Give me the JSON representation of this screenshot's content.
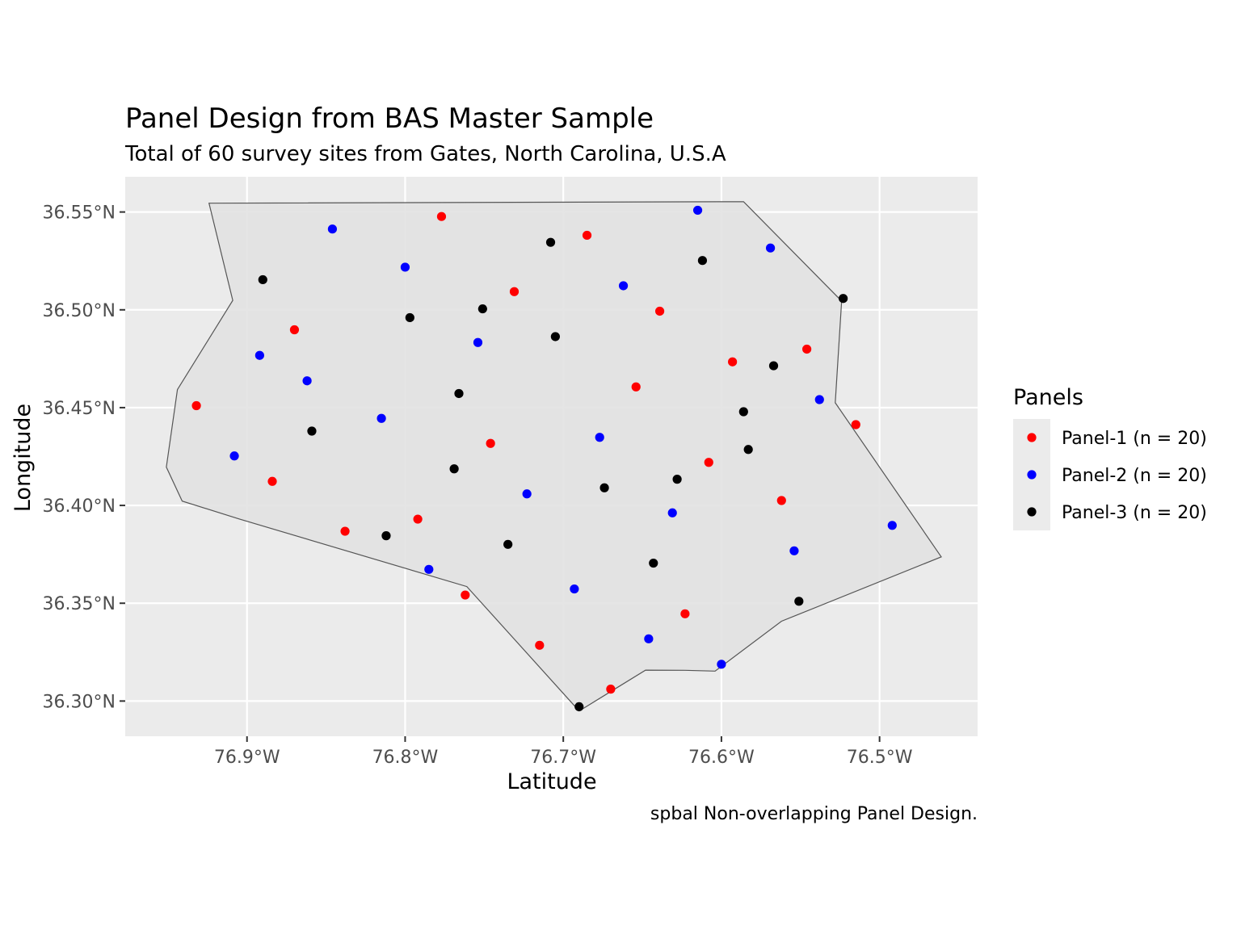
{
  "chart_data": {
    "type": "scatter",
    "title": "Panel Design from BAS Master Sample",
    "subtitle": "Total of 60 survey sites from Gates, North Carolina, U.S.A",
    "xlabel": "Latitude",
    "ylabel": "Longitude",
    "caption": "spbal Non-overlapping Panel Design.",
    "xlim": [
      -76.977,
      -76.438
    ],
    "ylim": [
      36.282,
      36.568
    ],
    "x_ticks": [
      {
        "value": -76.9,
        "label": "76.9°W"
      },
      {
        "value": -76.8,
        "label": "76.8°W"
      },
      {
        "value": -76.7,
        "label": "76.7°W"
      },
      {
        "value": -76.6,
        "label": "76.6°W"
      },
      {
        "value": -76.5,
        "label": "76.5°W"
      }
    ],
    "y_ticks": [
      {
        "value": 36.3,
        "label": "36.30°N"
      },
      {
        "value": 36.35,
        "label": "36.35°N"
      },
      {
        "value": 36.4,
        "label": "36.40°N"
      },
      {
        "value": 36.45,
        "label": "36.45°N"
      },
      {
        "value": 36.5,
        "label": "36.50°N"
      },
      {
        "value": 36.55,
        "label": "36.55°N"
      }
    ],
    "grid": true,
    "legend": {
      "title": "Panels",
      "placement": "right"
    },
    "boundary": [
      [
        -76.924,
        36.5545
      ],
      [
        -76.586,
        36.5553
      ],
      [
        -76.524,
        36.5045
      ],
      [
        -76.528,
        36.4525
      ],
      [
        -76.461,
        36.3737
      ],
      [
        -76.562,
        36.3408
      ],
      [
        -76.604,
        36.3153
      ],
      [
        -76.623,
        36.3157
      ],
      [
        -76.648,
        36.3158
      ],
      [
        -76.69,
        36.2949
      ],
      [
        -76.761,
        36.3585
      ],
      [
        -76.905,
        36.3931
      ],
      [
        -76.941,
        36.4022
      ],
      [
        -76.951,
        36.4196
      ],
      [
        -76.944,
        36.4592
      ],
      [
        -76.909,
        36.5048
      ]
    ],
    "series": [
      {
        "name": "Panel-1 (n = 20)",
        "color": "#ff0000",
        "points": [
          {
            "x": -76.932,
            "y": 36.451
          },
          {
            "x": -76.884,
            "y": 36.4123
          },
          {
            "x": -76.87,
            "y": 36.4898
          },
          {
            "x": -76.838,
            "y": 36.3868
          },
          {
            "x": -76.792,
            "y": 36.393
          },
          {
            "x": -76.777,
            "y": 36.5477
          },
          {
            "x": -76.762,
            "y": 36.3542
          },
          {
            "x": -76.746,
            "y": 36.4317
          },
          {
            "x": -76.731,
            "y": 36.5093
          },
          {
            "x": -76.715,
            "y": 36.3285
          },
          {
            "x": -76.685,
            "y": 36.5381
          },
          {
            "x": -76.67,
            "y": 36.3061
          },
          {
            "x": -76.654,
            "y": 36.4606
          },
          {
            "x": -76.639,
            "y": 36.4993
          },
          {
            "x": -76.623,
            "y": 36.3446
          },
          {
            "x": -76.608,
            "y": 36.422
          },
          {
            "x": -76.593,
            "y": 36.4734
          },
          {
            "x": -76.562,
            "y": 36.4025
          },
          {
            "x": -76.546,
            "y": 36.4799
          },
          {
            "x": -76.515,
            "y": 36.4413
          }
        ]
      },
      {
        "name": "Panel-2 (n = 20)",
        "color": "#0000ff",
        "points": [
          {
            "x": -76.908,
            "y": 36.4253
          },
          {
            "x": -76.892,
            "y": 36.4767
          },
          {
            "x": -76.862,
            "y": 36.4637
          },
          {
            "x": -76.846,
            "y": 36.5413
          },
          {
            "x": -76.815,
            "y": 36.4445
          },
          {
            "x": -76.8,
            "y": 36.5218
          },
          {
            "x": -76.785,
            "y": 36.3673
          },
          {
            "x": -76.754,
            "y": 36.4833
          },
          {
            "x": -76.723,
            "y": 36.4059
          },
          {
            "x": -76.693,
            "y": 36.3573
          },
          {
            "x": -76.677,
            "y": 36.4348
          },
          {
            "x": -76.662,
            "y": 36.5123
          },
          {
            "x": -76.646,
            "y": 36.3318
          },
          {
            "x": -76.631,
            "y": 36.3962
          },
          {
            "x": -76.615,
            "y": 36.5509
          },
          {
            "x": -76.6,
            "y": 36.3188
          },
          {
            "x": -76.569,
            "y": 36.5316
          },
          {
            "x": -76.554,
            "y": 36.3768
          },
          {
            "x": -76.538,
            "y": 36.4541
          },
          {
            "x": -76.492,
            "y": 36.3898
          }
        ]
      },
      {
        "name": "Panel-3 (n = 20)",
        "color": "#000000",
        "points": [
          {
            "x": -76.89,
            "y": 36.5154
          },
          {
            "x": -76.859,
            "y": 36.438
          },
          {
            "x": -76.812,
            "y": 36.3845
          },
          {
            "x": -76.797,
            "y": 36.496
          },
          {
            "x": -76.766,
            "y": 36.4572
          },
          {
            "x": -76.769,
            "y": 36.4187
          },
          {
            "x": -76.751,
            "y": 36.5005
          },
          {
            "x": -76.735,
            "y": 36.3801
          },
          {
            "x": -76.708,
            "y": 36.5345
          },
          {
            "x": -76.705,
            "y": 36.4863
          },
          {
            "x": -76.69,
            "y": 36.2971
          },
          {
            "x": -76.674,
            "y": 36.409
          },
          {
            "x": -76.643,
            "y": 36.3705
          },
          {
            "x": -76.628,
            "y": 36.4134
          },
          {
            "x": -76.612,
            "y": 36.5252
          },
          {
            "x": -76.586,
            "y": 36.4479
          },
          {
            "x": -76.583,
            "y": 36.4286
          },
          {
            "x": -76.567,
            "y": 36.4714
          },
          {
            "x": -76.551,
            "y": 36.351
          },
          {
            "x": -76.523,
            "y": 36.5058
          }
        ]
      }
    ]
  }
}
